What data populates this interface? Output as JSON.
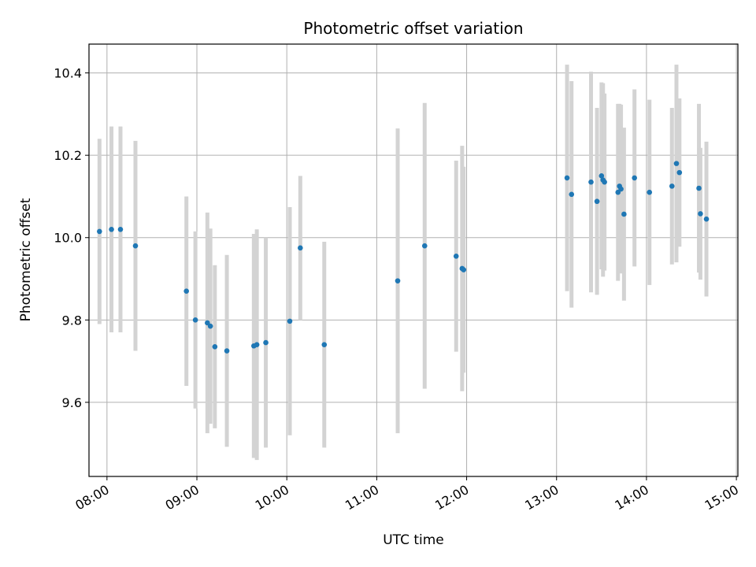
{
  "chart_data": {
    "type": "scatter",
    "title": "Photometric offset variation",
    "xlabel": "UTC time",
    "ylabel": "Photometric offset",
    "x_ticks": [
      "08:00",
      "09:00",
      "10:00",
      "11:00",
      "12:00",
      "13:00",
      "14:00",
      "15:00"
    ],
    "y_ticks": [
      9.6,
      9.8,
      10.0,
      10.2,
      10.4
    ],
    "xlim": [
      "07:48",
      "15:01"
    ],
    "ylim": [
      9.42,
      10.47
    ],
    "grid": true,
    "colors": {
      "point": "#1f77b4",
      "errorbar": "#d3d3d3",
      "grid": "#b0b0b0"
    },
    "points": [
      {
        "time": "07:55",
        "y": 10.015,
        "err": 0.225
      },
      {
        "time": "08:03",
        "y": 10.02,
        "err": 0.25
      },
      {
        "time": "08:09",
        "y": 10.02,
        "err": 0.25
      },
      {
        "time": "08:19",
        "y": 9.98,
        "err": 0.255
      },
      {
        "time": "08:53",
        "y": 9.87,
        "err": 0.23
      },
      {
        "time": "08:59",
        "y": 9.8,
        "err": 0.215
      },
      {
        "time": "09:07",
        "y": 9.793,
        "err": 0.268
      },
      {
        "time": "09:09",
        "y": 9.785,
        "err": 0.237
      },
      {
        "time": "09:12",
        "y": 9.735,
        "err": 0.198
      },
      {
        "time": "09:20",
        "y": 9.725,
        "err": 0.233
      },
      {
        "time": "09:38",
        "y": 9.737,
        "err": 0.272
      },
      {
        "time": "09:40",
        "y": 9.74,
        "err": 0.28
      },
      {
        "time": "09:46",
        "y": 9.745,
        "err": 0.255
      },
      {
        "time": "10:02",
        "y": 9.797,
        "err": 0.277
      },
      {
        "time": "10:09",
        "y": 9.975,
        "err": 0.175
      },
      {
        "time": "10:25",
        "y": 9.74,
        "err": 0.25
      },
      {
        "time": "11:14",
        "y": 9.895,
        "err": 0.37
      },
      {
        "time": "11:32",
        "y": 9.98,
        "err": 0.347
      },
      {
        "time": "11:53",
        "y": 9.955,
        "err": 0.232
      },
      {
        "time": "11:57",
        "y": 9.925,
        "err": 0.298
      },
      {
        "time": "11:58",
        "y": 9.922,
        "err": 0.25
      },
      {
        "time": "13:07",
        "y": 10.145,
        "err": 0.275
      },
      {
        "time": "13:10",
        "y": 10.105,
        "err": 0.275
      },
      {
        "time": "13:23",
        "y": 10.135,
        "err": 0.268
      },
      {
        "time": "13:27",
        "y": 10.088,
        "err": 0.227
      },
      {
        "time": "13:30",
        "y": 10.15,
        "err": 0.227
      },
      {
        "time": "13:31",
        "y": 10.14,
        "err": 0.235
      },
      {
        "time": "13:32",
        "y": 10.135,
        "err": 0.215
      },
      {
        "time": "13:41",
        "y": 10.11,
        "err": 0.215
      },
      {
        "time": "13:42",
        "y": 10.125,
        "err": 0.2
      },
      {
        "time": "13:43",
        "y": 10.118,
        "err": 0.205
      },
      {
        "time": "13:45",
        "y": 10.057,
        "err": 0.21
      },
      {
        "time": "13:52",
        "y": 10.145,
        "err": 0.215
      },
      {
        "time": "14:02",
        "y": 10.11,
        "err": 0.225
      },
      {
        "time": "14:17",
        "y": 10.125,
        "err": 0.19
      },
      {
        "time": "14:20",
        "y": 10.18,
        "err": 0.24
      },
      {
        "time": "14:22",
        "y": 10.158,
        "err": 0.18
      },
      {
        "time": "14:35",
        "y": 10.12,
        "err": 0.205
      },
      {
        "time": "14:36",
        "y": 10.058,
        "err": 0.16
      },
      {
        "time": "14:40",
        "y": 10.045,
        "err": 0.188
      }
    ]
  }
}
